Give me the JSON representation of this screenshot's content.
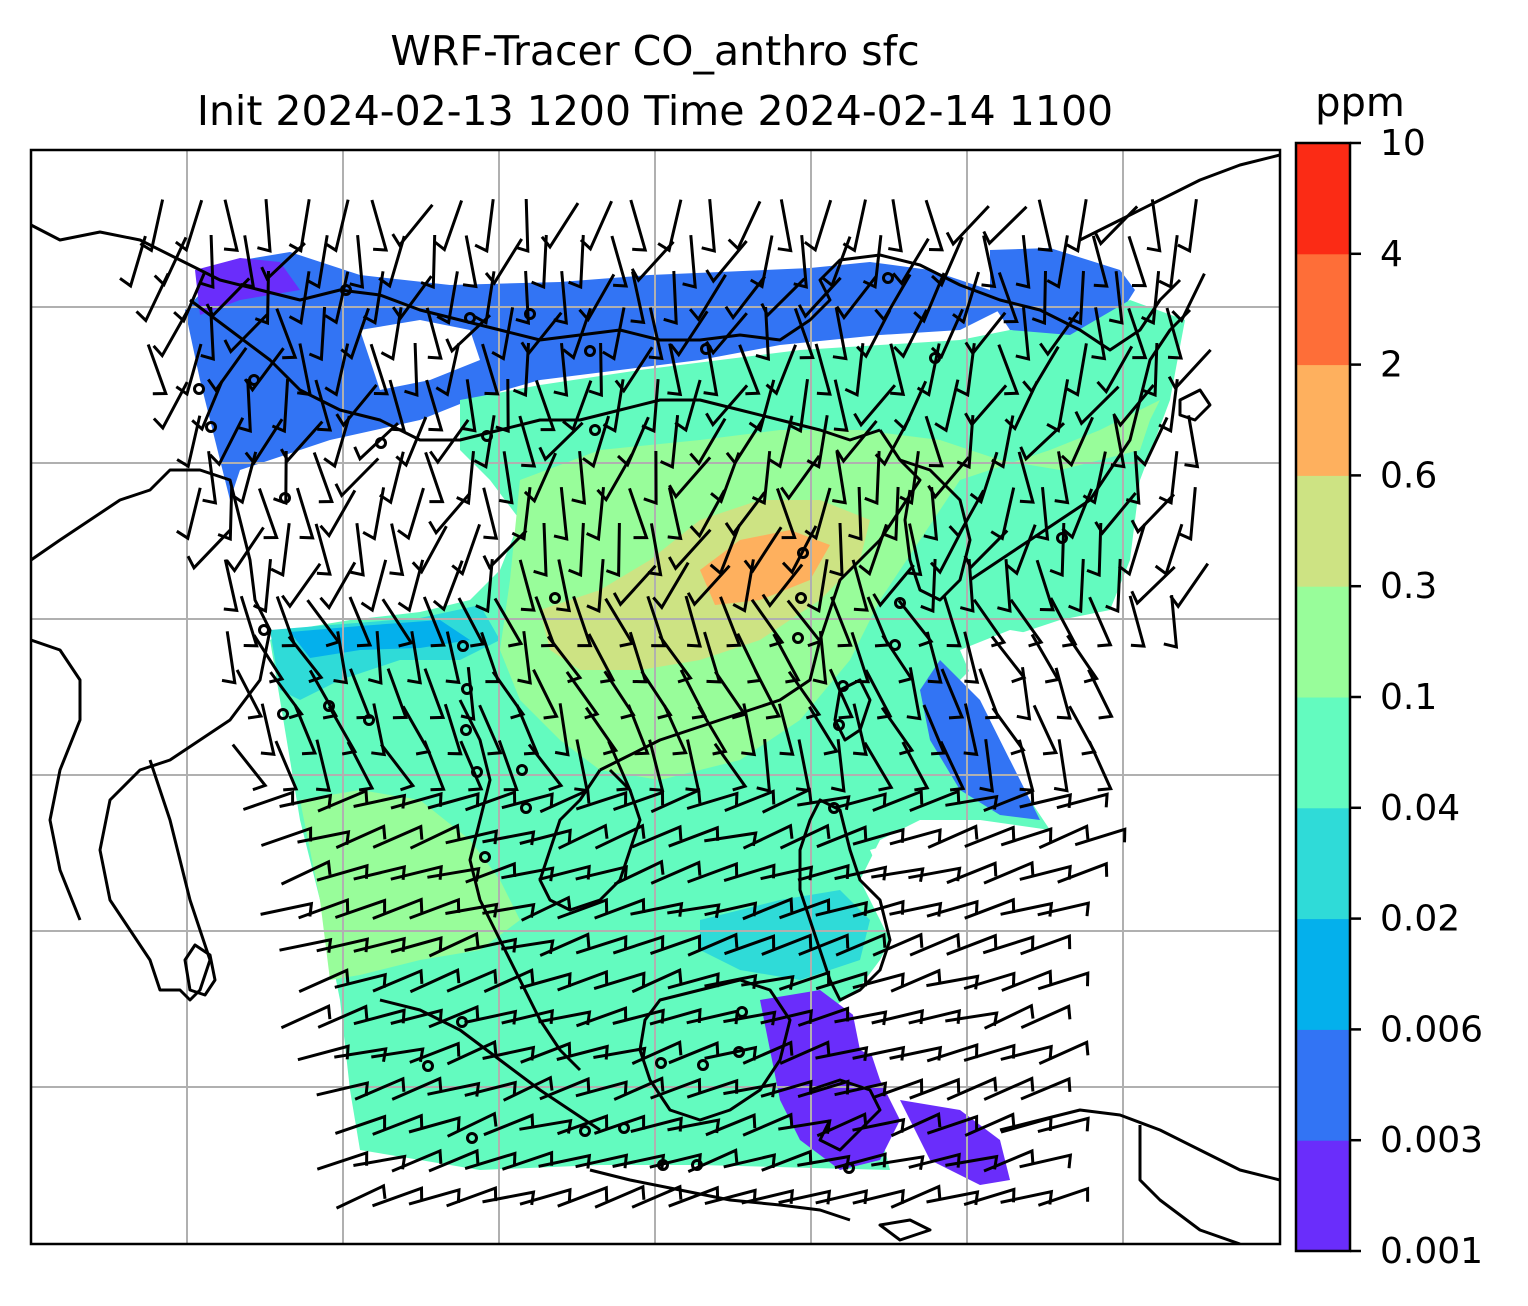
{
  "title": {
    "line1": "WRF-Tracer CO_anthro sfc",
    "line2": "Init 2024-02-13 1200 Time 2024-02-14 1100"
  },
  "colorbar": {
    "unit": "ppm",
    "levels": [
      "0.001",
      "0.003",
      "0.006",
      "0.02",
      "0.04",
      "0.1",
      "0.3",
      "0.6",
      "2",
      "4",
      "10"
    ],
    "colors": [
      "#6a2dfb",
      "#3274f4",
      "#04b0ec",
      "#2fdbd8",
      "#63fbbf",
      "#98fd9a",
      "#cde383",
      "#feb05e",
      "#fe6e38",
      "#fb2b15"
    ]
  },
  "map": {
    "background": "#ffffff",
    "grid_color": "#b0b0b0",
    "coastline_color": "#000000",
    "barb_color": "#000000"
  }
}
